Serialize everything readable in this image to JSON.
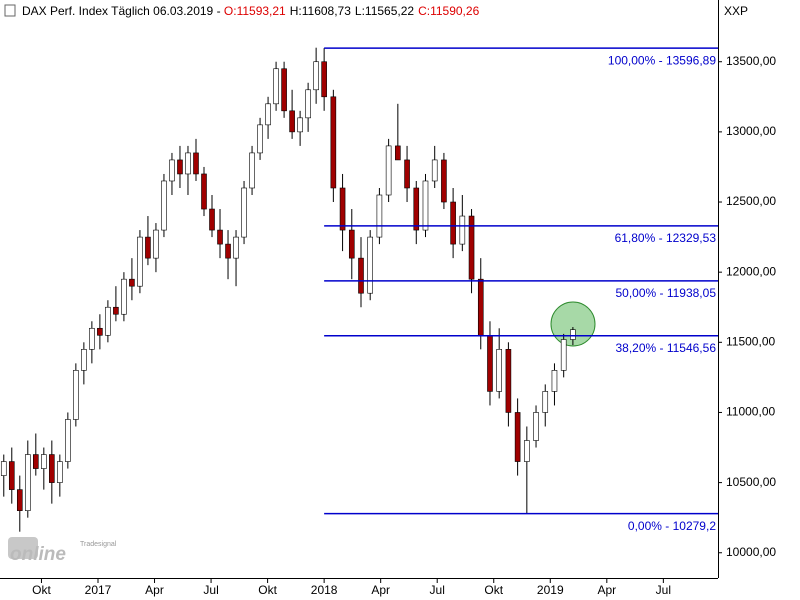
{
  "chart_data": {
    "type": "candlestick",
    "title": "DAX Perf. Index Täglich  06.03.2019 - ",
    "quote": [
      {
        "label": "O:11593,21",
        "color": "#dd0000"
      },
      {
        "label": "H:11608,73",
        "color": "#000000"
      },
      {
        "label": "L:11565,22",
        "color": "#000000"
      },
      {
        "label": "C:11590,26",
        "color": "#dd0000"
      }
    ],
    "symbol": "XXP",
    "watermark": [
      "Tradesignal",
      "online"
    ],
    "up_color": "#ffffff",
    "down_color": "#a00000",
    "xlim": [
      -2.2,
      35.9
    ],
    "ylim": [
      9820,
      13940
    ],
    "xticks": [
      {
        "value": 0,
        "label": "Okt"
      },
      {
        "value": 3,
        "label": "2017"
      },
      {
        "value": 6,
        "label": "Apr"
      },
      {
        "value": 9,
        "label": "Jul"
      },
      {
        "value": 12,
        "label": "Okt"
      },
      {
        "value": 15,
        "label": "2018"
      },
      {
        "value": 18,
        "label": "Apr"
      },
      {
        "value": 21,
        "label": "Jul"
      },
      {
        "value": 24,
        "label": "Okt"
      },
      {
        "value": 27,
        "label": "2019"
      },
      {
        "value": 30,
        "label": "Apr"
      },
      {
        "value": 33,
        "label": "Jul"
      }
    ],
    "yticks": [
      {
        "value": 10000,
        "label": "10000,00"
      },
      {
        "value": 10500,
        "label": "10500,00"
      },
      {
        "value": 11000,
        "label": "11000,00"
      },
      {
        "value": 11500,
        "label": "11500,00"
      },
      {
        "value": 12000,
        "label": "12000,00"
      },
      {
        "value": 12500,
        "label": "12500,00"
      },
      {
        "value": 13000,
        "label": "13000,00"
      },
      {
        "value": 13500,
        "label": "13500,00"
      }
    ],
    "fib_color": "#0000cc",
    "fib_start": 15.0,
    "fib_levels": [
      {
        "value": 13596.89,
        "label": "100,00% - 13596,89"
      },
      {
        "value": 12329.53,
        "label": "61,80% - 12329,53"
      },
      {
        "value": 11938.05,
        "label": "50,00% - 11938,05"
      },
      {
        "value": 11546.56,
        "label": "38,20% - 11546,56"
      },
      {
        "value": 10279.2,
        "label": "0,00% - 10279,2"
      }
    ],
    "x": [
      -2,
      -1.575,
      -1.15,
      -0.725,
      -0.3,
      0.125,
      0.55,
      0.975,
      1.4,
      1.825,
      2.25,
      2.675,
      3.1,
      3.525,
      3.95,
      4.375,
      4.8,
      5.225,
      5.65,
      6.075,
      6.5,
      6.925,
      7.35,
      7.775,
      8.2,
      8.625,
      9.05,
      9.475,
      9.9,
      10.325,
      10.75,
      11.175,
      11.6,
      12.025,
      12.45,
      12.875,
      13.3,
      13.725,
      14.15,
      14.575,
      15.0,
      15.489,
      15.978,
      16.467,
      16.956,
      17.444,
      17.933,
      18.422,
      18.911,
      19.4,
      19.889,
      20.378,
      20.867,
      21.356,
      21.844,
      22.333,
      22.822,
      23.311,
      23.8,
      24.289,
      24.778,
      25.267,
      25.756,
      26.244,
      26.733,
      27.222,
      27.711,
      28.2
    ],
    "open": [
      10550,
      10650,
      10450,
      10300,
      10700,
      10600,
      10700,
      10500,
      10650,
      10950,
      11300,
      11450,
      11600,
      11550,
      11750,
      11700,
      11950,
      11900,
      12250,
      12100,
      12300,
      12650,
      12800,
      12700,
      12850,
      12700,
      12450,
      12300,
      12200,
      12100,
      12250,
      12600,
      12850,
      13050,
      13200,
      13450,
      13150,
      13000,
      13100,
      13300,
      13500,
      13250,
      12600,
      12300,
      12100,
      11850,
      12250,
      12550,
      12900,
      12800,
      12600,
      12300,
      12650,
      12800,
      12500,
      12200,
      12400,
      11950,
      11550,
      11150,
      11450,
      11000,
      10650,
      10800,
      11000,
      11150,
      11300,
      11520
    ],
    "high": [
      10700,
      10750,
      10550,
      10800,
      10850,
      10750,
      10800,
      10700,
      11000,
      11350,
      11500,
      11650,
      11700,
      11800,
      11900,
      12000,
      12100,
      12300,
      12400,
      12350,
      12700,
      12850,
      12900,
      12900,
      12950,
      12750,
      12550,
      12450,
      12300,
      12300,
      12650,
      12900,
      13100,
      13250,
      13500,
      13500,
      13300,
      13150,
      13350,
      13600,
      13597,
      13300,
      12700,
      12450,
      12250,
      12300,
      12600,
      12950,
      13200,
      12900,
      12650,
      12700,
      12900,
      12850,
      12600,
      12550,
      12450,
      12100,
      11650,
      11600,
      11500,
      11100,
      10900,
      11050,
      11200,
      11350,
      11560,
      11609
    ],
    "low": [
      10400,
      10350,
      10150,
      10250,
      10550,
      10450,
      10350,
      10400,
      10600,
      10900,
      11200,
      11350,
      11450,
      11500,
      11650,
      11650,
      11800,
      11850,
      12050,
      12000,
      12250,
      12550,
      12600,
      12550,
      12650,
      12400,
      12250,
      12100,
      11950,
      11900,
      12200,
      12550,
      12800,
      12950,
      13150,
      13100,
      12950,
      12900,
      13000,
      13200,
      13150,
      12500,
      12150,
      11950,
      11750,
      11800,
      12200,
      12500,
      12800,
      12500,
      12200,
      12250,
      12600,
      12450,
      12100,
      12150,
      11850,
      11450,
      11050,
      11100,
      10900,
      10550,
      10279,
      10750,
      10900,
      11050,
      11250,
      11480
    ],
    "close": [
      10650,
      10450,
      10300,
      10700,
      10600,
      10700,
      10500,
      10650,
      10950,
      11300,
      11450,
      11600,
      11550,
      11750,
      11700,
      11950,
      11900,
      12250,
      12100,
      12300,
      12650,
      12800,
      12700,
      12850,
      12700,
      12450,
      12300,
      12200,
      12100,
      12250,
      12600,
      12850,
      13050,
      13200,
      13450,
      13150,
      13000,
      13100,
      13300,
      13500,
      13250,
      12600,
      12300,
      12100,
      11850,
      12250,
      12550,
      12900,
      12800,
      12600,
      12300,
      12650,
      12800,
      12500,
      12200,
      12400,
      11950,
      11550,
      11150,
      11450,
      11000,
      10650,
      10800,
      11000,
      11150,
      11300,
      11520,
      11590
    ]
  }
}
